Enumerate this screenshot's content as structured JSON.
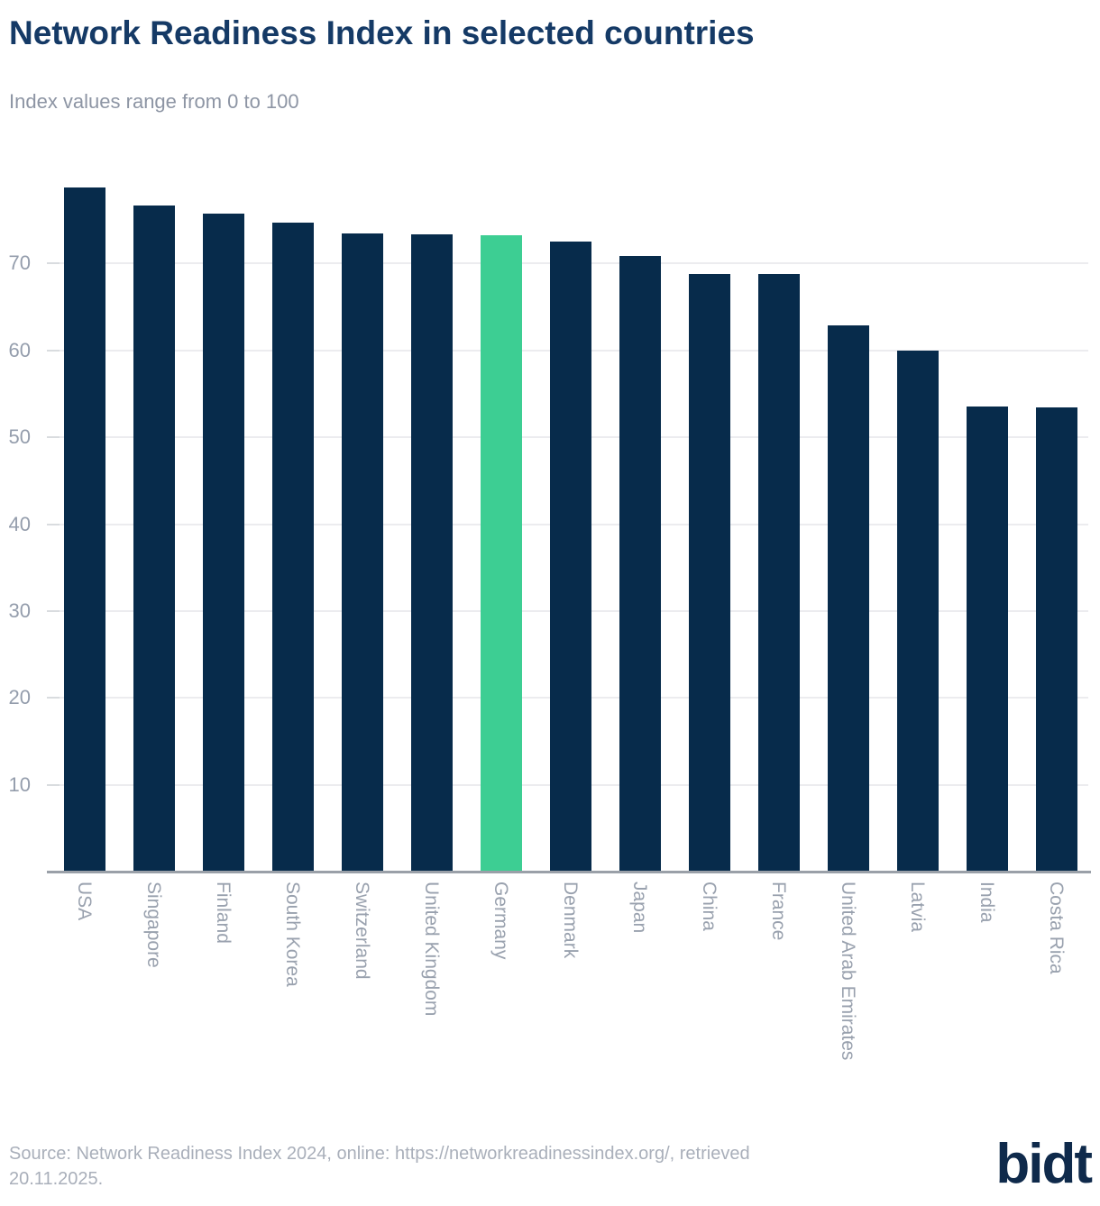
{
  "header": {
    "title": "Network Readiness Index in selected countries",
    "subtitle": "Index values range from 0 to 100"
  },
  "chart_data": {
    "type": "bar",
    "title": "Network Readiness Index in selected countries",
    "subtitle": "Index values range from 0 to 100",
    "categories": [
      "USA",
      "Singapore",
      "Finland",
      "South Korea",
      "Switzerland",
      "United Kingdom",
      "Germany",
      "Denmark",
      "Japan",
      "China",
      "France",
      "United Arab Emirates",
      "Latvia",
      "India",
      "Costa Rica"
    ],
    "values": [
      78.8,
      76.7,
      75.8,
      74.7,
      73.5,
      73.4,
      73.3,
      72.5,
      70.9,
      68.8,
      68.8,
      62.9,
      60.0,
      53.6,
      53.4
    ],
    "highlight_category": "Germany",
    "yticks": [
      10,
      20,
      30,
      40,
      50,
      60,
      70
    ],
    "ylim": [
      0,
      81.5
    ],
    "grid": "horizontal",
    "legend": "none",
    "xlabel": "",
    "ylabel": "",
    "bar_color": "#072b4b",
    "highlight_color": "#3dce93"
  },
  "footer": {
    "source_lines": [
      "Source: Network Readiness Index 2024, online: https://networkreadinessindex.org/, retrieved",
      "20.11.2025."
    ],
    "logo": "bidt"
  }
}
